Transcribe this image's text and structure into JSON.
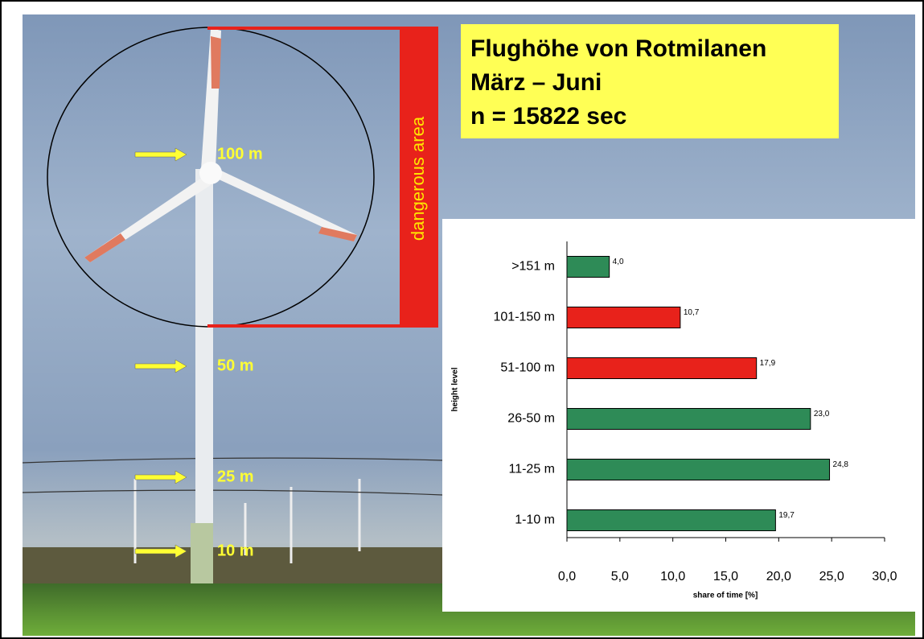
{
  "chart_data": {
    "type": "barh",
    "title": "Flughöhe von Rotmilanen",
    "subtitle": "März – Juni",
    "annotations": [
      "n = 15822 sec",
      "dangerous area",
      "100 m",
      "50 m",
      "25 m",
      "10 m"
    ],
    "categories": [
      ">151 m",
      "101-150 m",
      "51-100 m",
      "26-50 m",
      "11-25 m",
      "1-10 m"
    ],
    "values": [
      4.0,
      10.7,
      17.9,
      23.0,
      24.8,
      19.7
    ],
    "value_labels": [
      "4,0",
      "10,7",
      "17,9",
      "23,0",
      "24,8",
      "19,7"
    ],
    "colors": [
      "#2e8b57",
      "#e8221b",
      "#e8221b",
      "#2e8b57",
      "#2e8b57",
      "#2e8b57"
    ],
    "xlim": [
      0,
      30
    ],
    "xticks": [
      {
        "value": 0,
        "label": "0,0"
      },
      {
        "value": 5,
        "label": "5,0"
      },
      {
        "value": 10,
        "label": "10,0"
      },
      {
        "value": 15,
        "label": "15,0"
      },
      {
        "value": 20,
        "label": "20,0"
      },
      {
        "value": 25,
        "label": "25,0"
      },
      {
        "value": 30,
        "label": "30,0"
      }
    ],
    "xlabel": "share of time [%]",
    "ylabel": "height level"
  }
}
